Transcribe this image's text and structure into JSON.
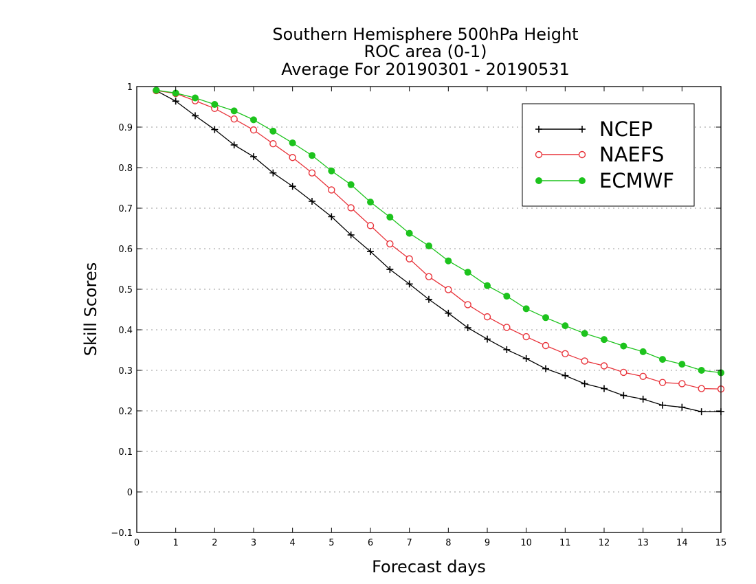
{
  "chart_data": {
    "type": "line",
    "title": [
      "Southern Hemisphere 500hPa Height",
      "ROC area (0-1)",
      "Average For 20190301 - 20190531"
    ],
    "xlabel": "Forecast days",
    "ylabel": "Skill Scores",
    "xlim": [
      0,
      15
    ],
    "ylim": [
      -0.1,
      1
    ],
    "xticks": [
      "0",
      "1",
      "2",
      "3",
      "4",
      "5",
      "6",
      "7",
      "8",
      "9",
      "10",
      "11",
      "12",
      "13",
      "14",
      "15"
    ],
    "yticks": [
      "−0.1",
      "0",
      "0.1",
      "0.2",
      "0.3",
      "0.4",
      "0.5",
      "0.6",
      "0.7",
      "0.8",
      "0.9",
      "1"
    ],
    "grid": "horizontal dotted",
    "legend_position": "top-right",
    "x": [
      0.5,
      1,
      1.5,
      2,
      2.5,
      3,
      3.5,
      4,
      4.5,
      5,
      5.5,
      6,
      6.5,
      7,
      7.5,
      8,
      8.5,
      9,
      9.5,
      10,
      10.5,
      11,
      11.5,
      12,
      12.5,
      13,
      13.5,
      14,
      14.5,
      15
    ],
    "series": [
      {
        "name": "NCEP",
        "color": "#000000",
        "marker": "plus",
        "values": [
          0.99,
          0.964,
          0.928,
          0.894,
          0.856,
          0.827,
          0.787,
          0.754,
          0.717,
          0.679,
          0.634,
          0.593,
          0.549,
          0.513,
          0.475,
          0.441,
          0.405,
          0.377,
          0.351,
          0.329,
          0.304,
          0.287,
          0.267,
          0.255,
          0.238,
          0.229,
          0.214,
          0.209,
          0.198,
          0.198
        ]
      },
      {
        "name": "NAEFS",
        "color": "#e8333a",
        "marker": "open-circle",
        "values": [
          0.99,
          0.983,
          0.965,
          0.946,
          0.92,
          0.893,
          0.859,
          0.825,
          0.787,
          0.745,
          0.701,
          0.657,
          0.612,
          0.575,
          0.531,
          0.499,
          0.462,
          0.432,
          0.406,
          0.383,
          0.361,
          0.341,
          0.323,
          0.311,
          0.295,
          0.285,
          0.27,
          0.267,
          0.255,
          0.254
        ]
      },
      {
        "name": "ECMWF",
        "color": "#1dc31d",
        "marker": "filled-circle",
        "values": [
          0.991,
          0.984,
          0.972,
          0.956,
          0.94,
          0.918,
          0.89,
          0.861,
          0.83,
          0.792,
          0.758,
          0.715,
          0.678,
          0.638,
          0.607,
          0.57,
          0.542,
          0.509,
          0.483,
          0.452,
          0.43,
          0.41,
          0.391,
          0.376,
          0.36,
          0.346,
          0.327,
          0.315,
          0.3,
          0.294
        ]
      }
    ]
  }
}
